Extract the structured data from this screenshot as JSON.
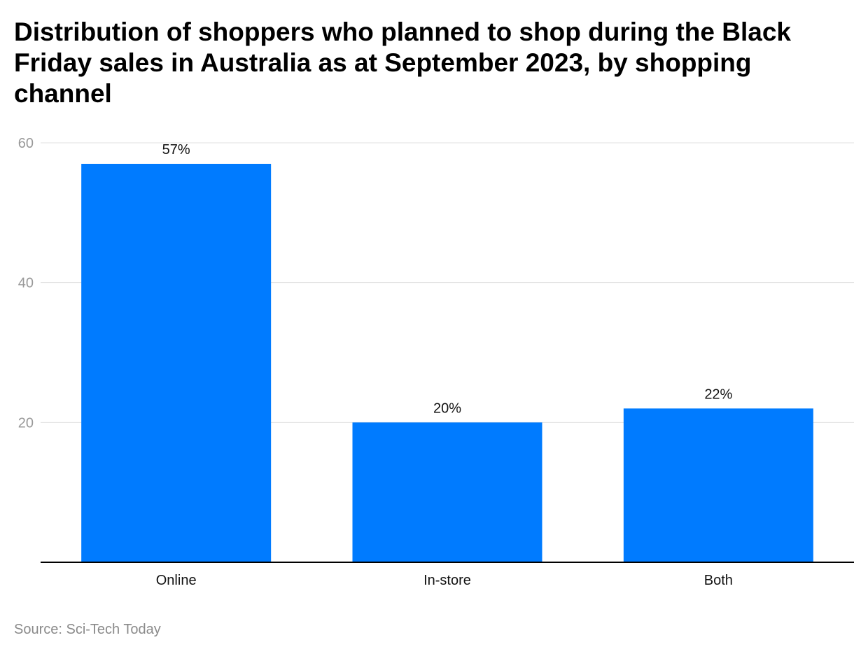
{
  "chart_data": {
    "type": "bar",
    "title": "Distribution of shoppers who planned to shop during the Black Friday sales in Australia as at September 2023, by shopping channel",
    "categories": [
      "Online",
      "In-store",
      "Both"
    ],
    "values": [
      57,
      20,
      22
    ],
    "data_labels": [
      "57%",
      "20%",
      "22%"
    ],
    "xlabel": "",
    "ylabel": "",
    "ylim": [
      0,
      60
    ],
    "yticks": [
      20,
      40,
      60
    ],
    "grid": true,
    "bar_color": "#007bff",
    "source": "Source: Sci-Tech Today"
  }
}
